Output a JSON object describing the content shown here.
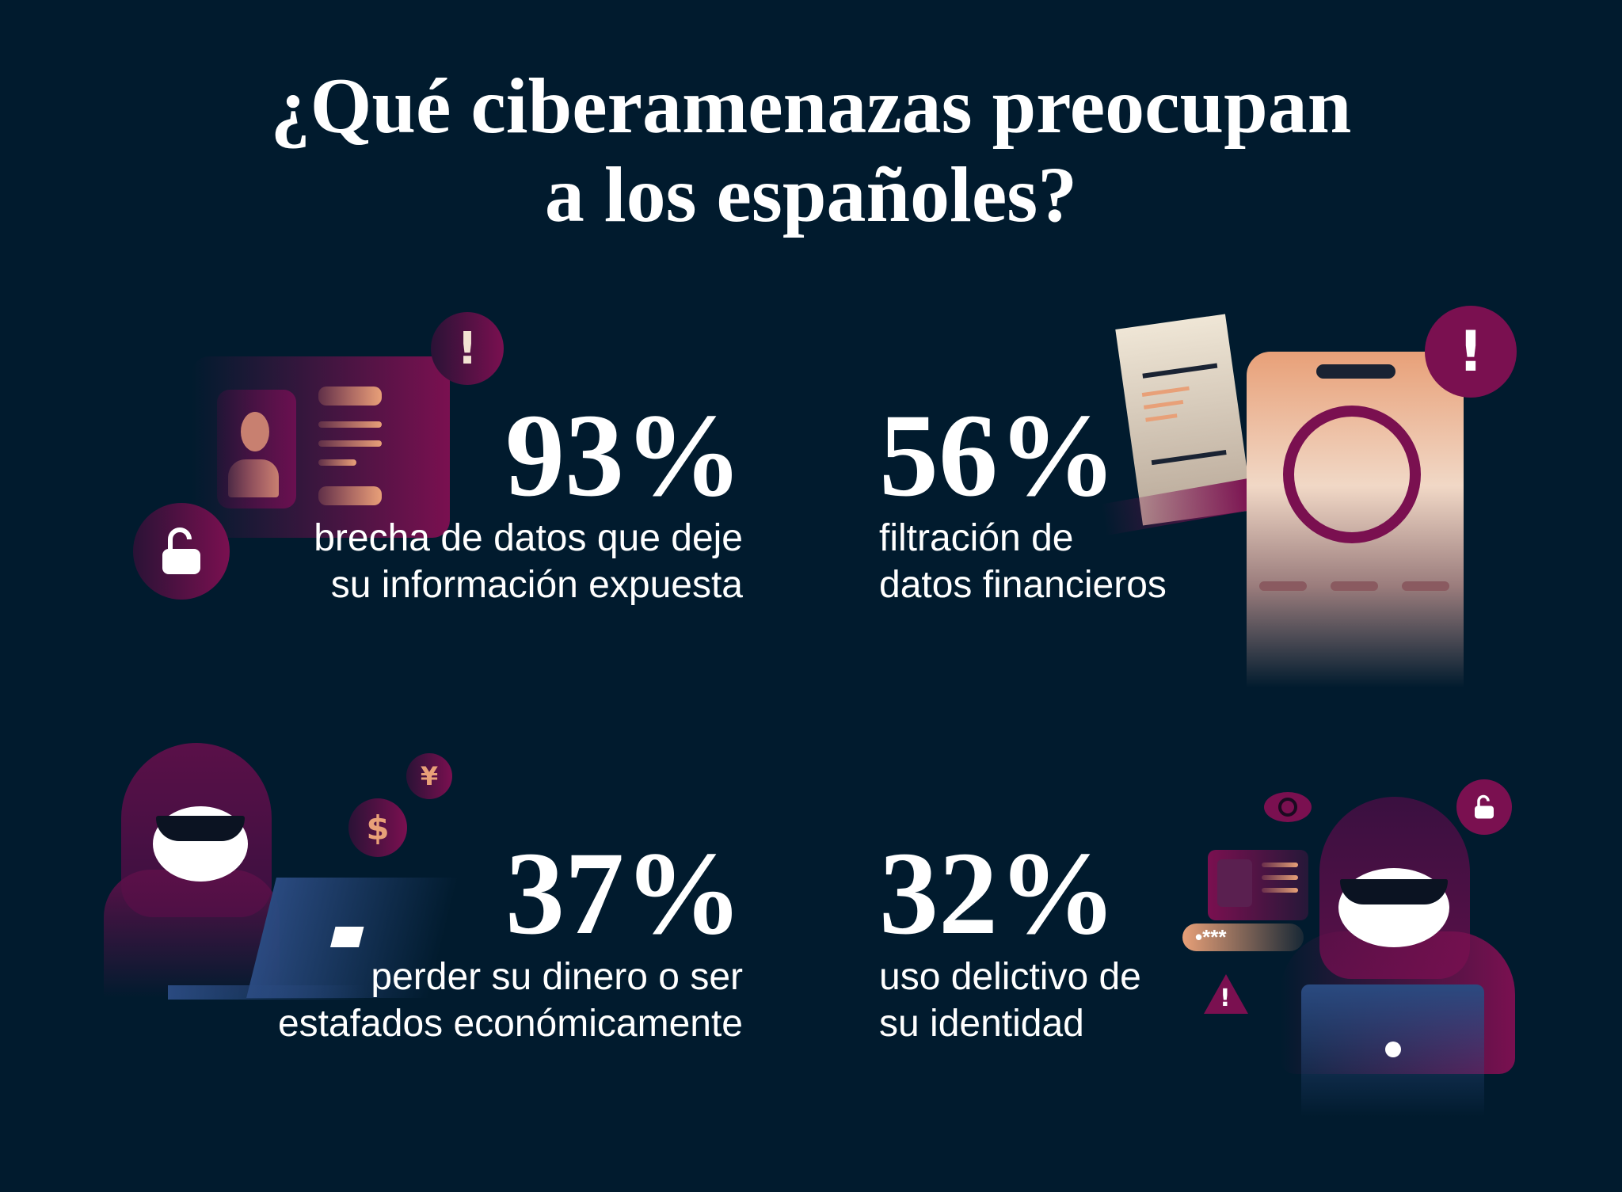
{
  "title": {
    "line1": "¿Qué ciberamenazas preocupan",
    "line2": "a los españoles?"
  },
  "stats": [
    {
      "value": "93%",
      "line1": "brecha de datos que deje",
      "line2": "su información expuesta"
    },
    {
      "value": "56%",
      "line1": "filtración de",
      "line2": "datos financieros"
    },
    {
      "value": "37%",
      "line1": "perder su dinero o ser",
      "line2": "estafados económicamente"
    },
    {
      "value": "32%",
      "line1": "uso delictivo de",
      "line2": "su identidad"
    }
  ],
  "icons": {
    "exclamation": "!",
    "dollar": "$",
    "yen": "¥",
    "password": "•***"
  },
  "colors": {
    "background": "#011b2e",
    "accent": "#7a1050",
    "peach": "#e8a078"
  }
}
